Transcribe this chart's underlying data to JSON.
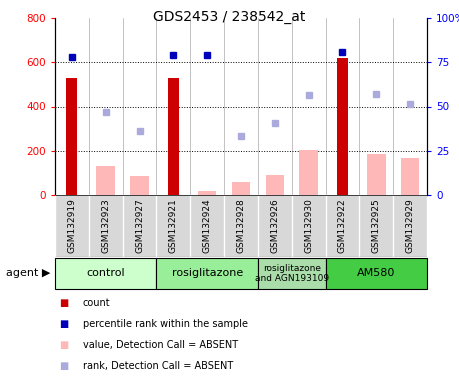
{
  "title": "GDS2453 / 238542_at",
  "samples": [
    "GSM132919",
    "GSM132923",
    "GSM132927",
    "GSM132921",
    "GSM132924",
    "GSM132928",
    "GSM132926",
    "GSM132930",
    "GSM132922",
    "GSM132925",
    "GSM132929"
  ],
  "count_values": [
    530,
    0,
    0,
    530,
    0,
    0,
    0,
    0,
    620,
    0,
    0
  ],
  "absent_value": [
    0,
    130,
    85,
    0,
    18,
    60,
    90,
    205,
    0,
    185,
    165
  ],
  "rank_absent": [
    0,
    375,
    290,
    0,
    0,
    265,
    325,
    450,
    0,
    455,
    410
  ],
  "percentile_present": [
    78,
    0,
    0,
    79,
    79,
    0,
    0,
    0,
    81,
    0,
    0
  ],
  "groups": [
    {
      "label": "control",
      "start": 0,
      "end": 2,
      "color": "#ccffcc"
    },
    {
      "label": "rosiglitazone",
      "start": 3,
      "end": 5,
      "color": "#99ee99"
    },
    {
      "label": "rosiglitazone\nand AGN193109",
      "start": 6,
      "end": 7,
      "color": "#aaddaa"
    },
    {
      "label": "AM580",
      "start": 8,
      "end": 10,
      "color": "#44cc44"
    }
  ],
  "ylim_left": [
    0,
    800
  ],
  "ylim_right": [
    0,
    100
  ],
  "yticks_left": [
    0,
    200,
    400,
    600,
    800
  ],
  "yticks_right": [
    0,
    25,
    50,
    75,
    100
  ],
  "count_color": "#cc0000",
  "absent_bar_color": "#ffb8b8",
  "percentile_present_color": "#0000bb",
  "rank_absent_color": "#aaaadd"
}
